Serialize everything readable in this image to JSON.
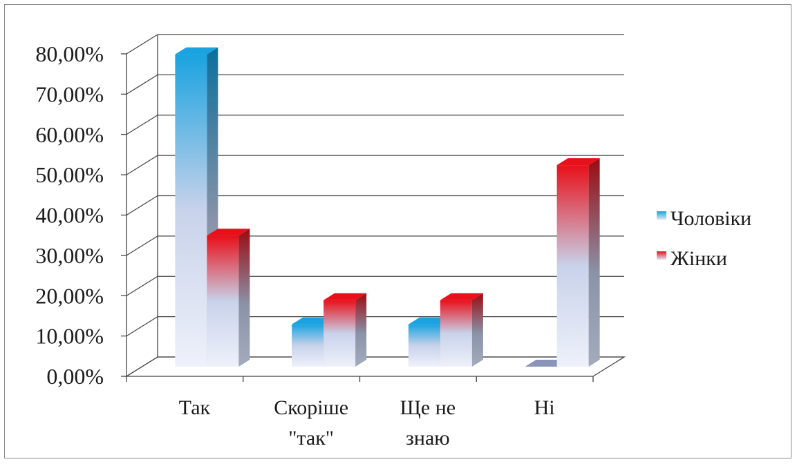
{
  "chart_data": {
    "type": "bar",
    "style": "3d-clustered-column",
    "categories": [
      [
        "Так"
      ],
      [
        "Скоріше",
        "\"так\""
      ],
      [
        "Ще не",
        "знаю"
      ],
      [
        "Ні"
      ]
    ],
    "series": [
      {
        "name": "Чоловіки",
        "values": [
          77.5,
          10.5,
          10.5,
          0.0
        ],
        "color": "#1aa3e0"
      },
      {
        "name": "Жінки",
        "values": [
          32.5,
          16.5,
          16.5,
          50.0
        ],
        "color": "#e8101a"
      }
    ],
    "ylim": [
      0,
      80
    ],
    "yticks": [
      "0,00%",
      "10,00%",
      "20,00%",
      "30,00%",
      "40,00%",
      "50,00%",
      "60,00%",
      "70,00%",
      "80,00%"
    ],
    "grid": true,
    "legend_position": "right"
  }
}
